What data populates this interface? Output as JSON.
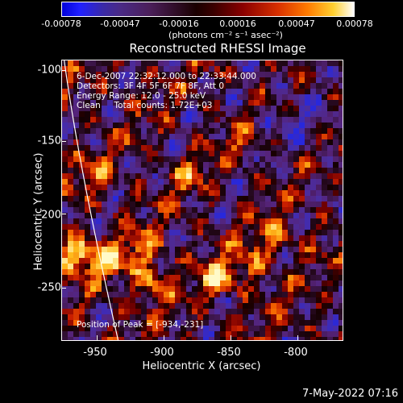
{
  "colorbar": {
    "ticks": [
      "-0.00078",
      "-0.00047",
      "-0.00016",
      "0.00016",
      "0.00047",
      "0.00078"
    ],
    "units": "(photons cm⁻² s⁻¹ asec⁻²)"
  },
  "title": "Reconstructed RHESSI Image",
  "info": {
    "line1": "6-Dec-2007 22:32:12.000 to 22:33:44.000",
    "line2": "Detectors: 3F 4F 5F 6F 7F 8F, Att 0",
    "line3": "Energy Range: 12.0 - 25.0 keV",
    "line4": "Clean     Total counts: 1.72E+03"
  },
  "peak": "Position of Peak = [-934,-231]",
  "axes": {
    "xlabel": "Heliocentric X (arcsec)",
    "ylabel": "Heliocentric Y (arcsec)",
    "xticks": [
      "-950",
      "-900",
      "-850",
      "-800"
    ],
    "yticks": [
      "-100",
      "-150",
      "-200",
      "-250"
    ]
  },
  "date": "7-May-2022 07:16"
}
